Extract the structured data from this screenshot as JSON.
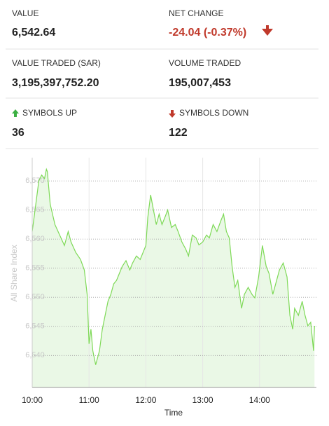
{
  "stats": [
    {
      "label": "VALUE",
      "value": "6,542.64"
    },
    {
      "label": "NET CHANGE",
      "value": "-24.04 (-0.37%)"
    },
    {
      "label": "VALUE TRADED (SAR)",
      "value": "3,195,397,752.20"
    },
    {
      "label": "VOLUME TRADED",
      "value": "195,007,453"
    },
    {
      "label": "SYMBOLS UP",
      "value": "36"
    },
    {
      "label": "SYMBOLS DOWN",
      "value": "122"
    }
  ],
  "chart_data": {
    "type": "area",
    "x_label": "Time",
    "y_label": "All Share Index",
    "series": [
      {
        "name": "All Share Index",
        "color": "#7ed957",
        "x": [
          600,
          603,
          607,
          610,
          613,
          615,
          616,
          619,
          624,
          629,
          634,
          638,
          641,
          646,
          651,
          655,
          658,
          660,
          662,
          664,
          667,
          671,
          674,
          677,
          680,
          683,
          686,
          689,
          692,
          695,
          699,
          703,
          706,
          710,
          714,
          717,
          720,
          722,
          725,
          728,
          731,
          734,
          737,
          740,
          743,
          747,
          751,
          754,
          758,
          762,
          765,
          769,
          773,
          776,
          780,
          784,
          787,
          791,
          795,
          799,
          802,
          805,
          808,
          811,
          814,
          817,
          821,
          824,
          828,
          832,
          835,
          839,
          843,
          847,
          850,
          854,
          858,
          861,
          865,
          869,
          872,
          875,
          877,
          881,
          885,
          888,
          891,
          894,
          897,
          898
        ],
        "values": [
          6561.3,
          6565,
          6570,
          6571,
          6570.4,
          6572,
          6571.6,
          6566,
          6562.5,
          6560.7,
          6558.9,
          6561.3,
          6559.5,
          6557.7,
          6556.5,
          6554.7,
          6550.5,
          6542,
          6544.5,
          6540.8,
          6538.4,
          6540.8,
          6544.5,
          6546.9,
          6549.3,
          6550.5,
          6552.3,
          6552.9,
          6554.1,
          6555.3,
          6556.3,
          6554.7,
          6555.9,
          6557.1,
          6556.5,
          6557.7,
          6558.9,
          6563.7,
          6567.6,
          6565,
          6562.5,
          6564.3,
          6562.5,
          6563.7,
          6565,
          6562,
          6562.5,
          6561.3,
          6559.5,
          6558.3,
          6557.1,
          6560.7,
          6560.2,
          6559,
          6559.5,
          6560.7,
          6560.2,
          6562.5,
          6561.3,
          6563.1,
          6564.3,
          6561.3,
          6560.2,
          6555.3,
          6551.7,
          6552.9,
          6548.1,
          6550.5,
          6551.7,
          6550.5,
          6549.9,
          6553.5,
          6558.9,
          6555.3,
          6554.1,
          6550.5,
          6552.9,
          6554.7,
          6555.9,
          6553.5,
          6546.9,
          6544.5,
          6548.1,
          6546.9,
          6549.3,
          6546.9,
          6545.1,
          6545.7,
          6540.8,
          6545.1
        ]
      }
    ],
    "xlim": [
      600,
      900
    ],
    "xticks": [
      {
        "value": 600,
        "label": "10:00"
      },
      {
        "value": 660,
        "label": "11:00"
      },
      {
        "value": 720,
        "label": "12:00"
      },
      {
        "value": 780,
        "label": "13:00"
      },
      {
        "value": 840,
        "label": "14:00"
      }
    ],
    "ylim": [
      6534.5,
      6574
    ],
    "yticks": [
      {
        "value": 6540,
        "label": "6,540"
      },
      {
        "value": 6545,
        "label": "6,545"
      },
      {
        "value": 6550,
        "label": "6,550"
      },
      {
        "value": 6555,
        "label": "6,555"
      },
      {
        "value": 6560,
        "label": "6,560"
      },
      {
        "value": 6565,
        "label": "6,565"
      },
      {
        "value": 6570,
        "label": "6,570"
      }
    ],
    "grid": true,
    "fill_color": "#eaf8e6"
  }
}
